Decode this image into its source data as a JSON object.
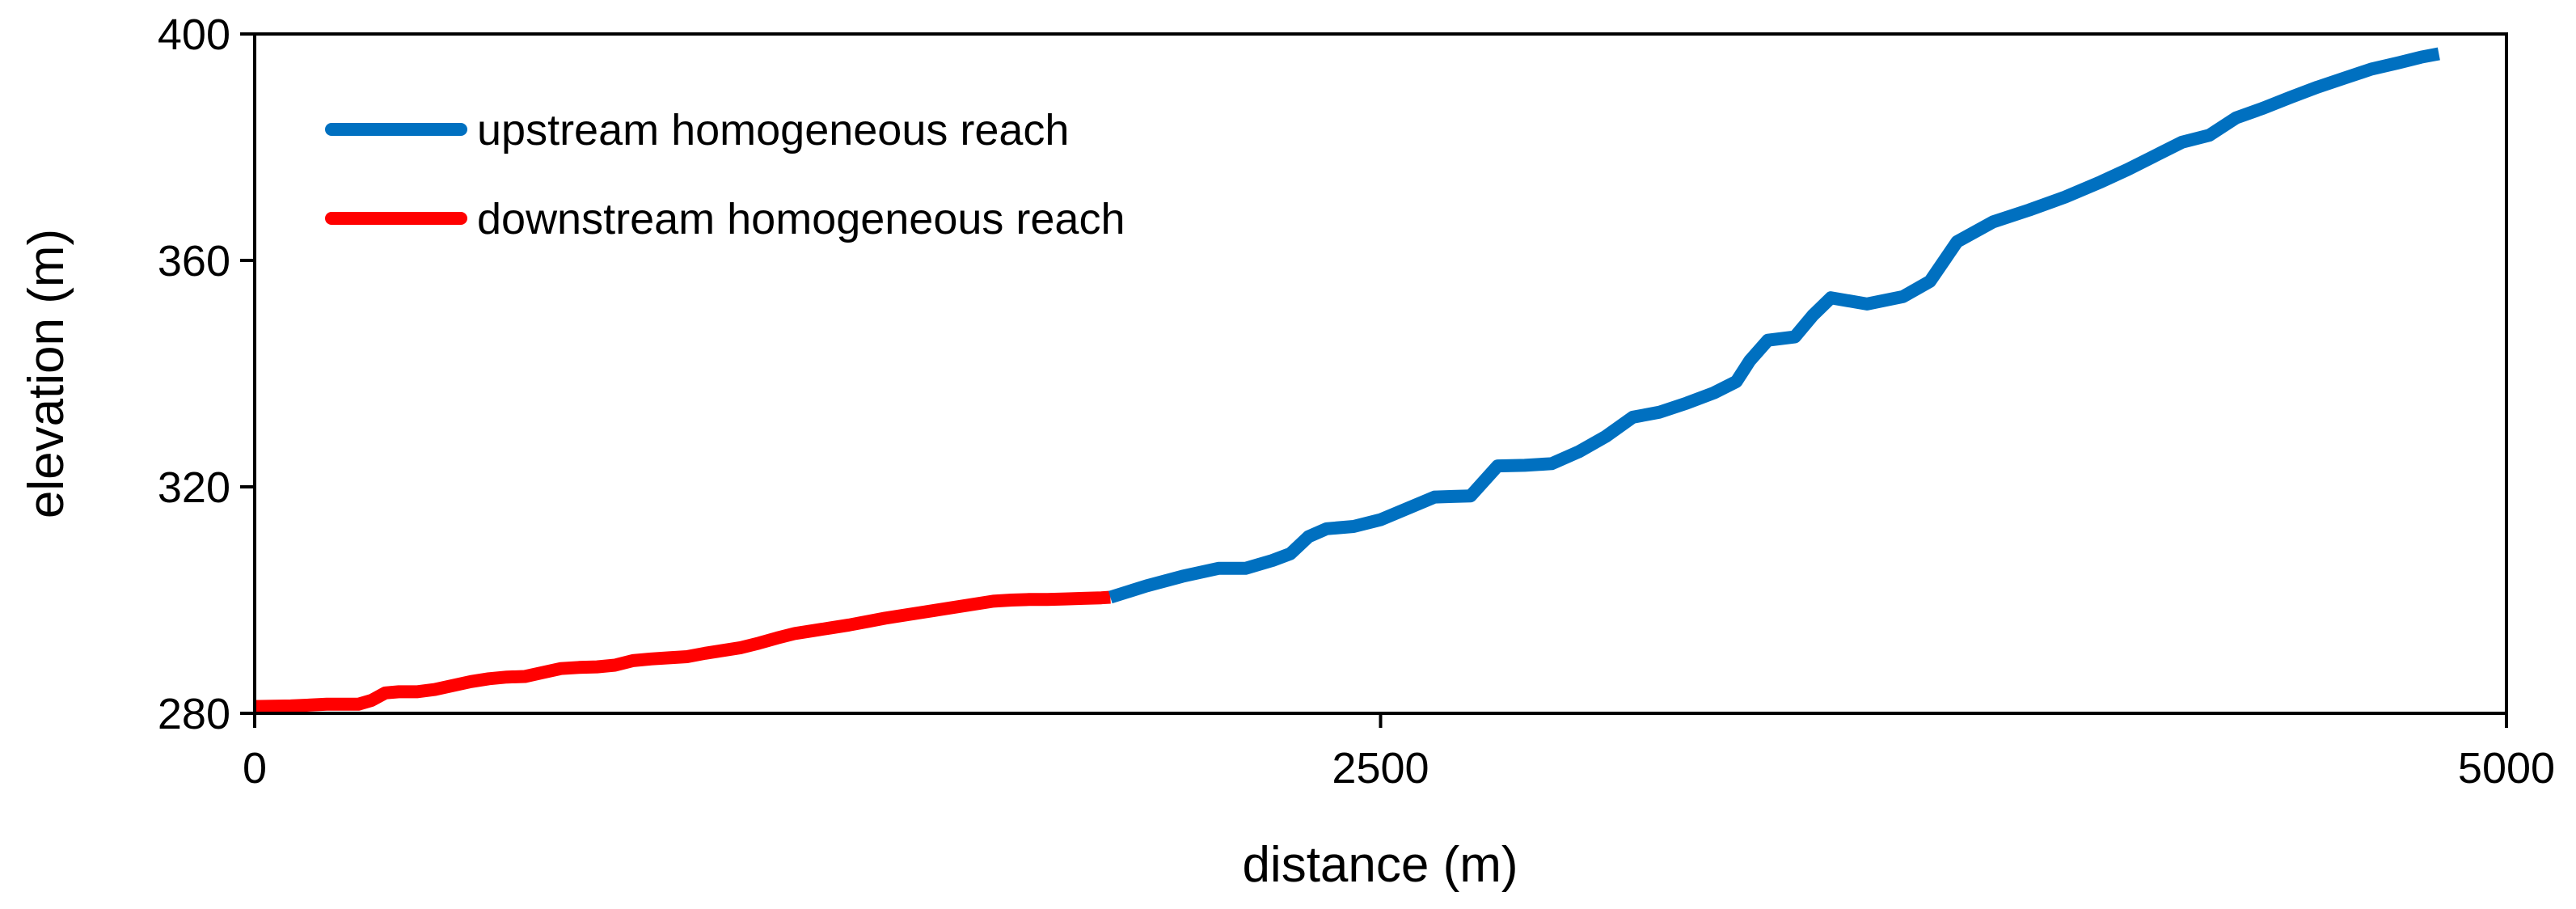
{
  "chart_data": {
    "type": "line",
    "title": "",
    "xlabel": "distance (m)",
    "ylabel": "elevation (m)",
    "xlim": [
      0,
      5000
    ],
    "ylim": [
      280,
      400
    ],
    "xticks": [
      0,
      2500,
      5000
    ],
    "yticks": [
      280,
      320,
      360,
      400
    ],
    "grid": false,
    "legend_position": "top-left",
    "series": [
      {
        "name": "upstream homogeneous reach",
        "color": "#0070C0",
        "x": [
          1900,
          1980,
          2060,
          2140,
          2200,
          2260,
          2300,
          2340,
          2380,
          2440,
          2500,
          2560,
          2620,
          2660,
          2700,
          2760,
          2820,
          2880,
          2940,
          3000,
          3060,
          3120,
          3180,
          3240,
          3290,
          3320,
          3360,
          3420,
          3460,
          3500,
          3580,
          3660,
          3720,
          3780,
          3860,
          3940,
          4020,
          4100,
          4160,
          4220,
          4280,
          4340,
          4400,
          4460,
          4520,
          4580,
          4640,
          4700,
          4760,
          4810,
          4850
        ],
        "y": [
          300.5,
          302.5,
          304.2,
          305.6,
          305.6,
          307.0,
          308.2,
          311.2,
          312.6,
          313.0,
          314.2,
          316.2,
          318.2,
          318.3,
          318.4,
          323.7,
          323.8,
          324.1,
          326.2,
          328.9,
          332.3,
          333.2,
          334.8,
          336.6,
          338.6,
          342.3,
          345.9,
          346.5,
          350.3,
          353.4,
          352.3,
          353.6,
          356.3,
          363.3,
          366.8,
          368.9,
          371.2,
          373.9,
          376.1,
          378.5,
          380.9,
          382.1,
          385.2,
          386.9,
          388.8,
          390.6,
          392.2,
          393.8,
          394.9,
          395.9,
          396.5
        ]
      },
      {
        "name": "downstream homogeneous reach",
        "color": "#FF0000",
        "x": [
          0,
          80,
          160,
          230,
          260,
          290,
          320,
          360,
          400,
          440,
          480,
          520,
          560,
          600,
          640,
          680,
          720,
          760,
          800,
          840,
          880,
          920,
          960,
          1000,
          1040,
          1080,
          1120,
          1160,
          1200,
          1240,
          1280,
          1320,
          1360,
          1400,
          1440,
          1480,
          1520,
          1560,
          1600,
          1640,
          1680,
          1720,
          1760,
          1800,
          1840,
          1880,
          1900
        ],
        "y": [
          281.2,
          281.3,
          281.6,
          281.6,
          282.3,
          283.6,
          283.8,
          283.8,
          284.2,
          284.9,
          285.6,
          286.1,
          286.4,
          286.5,
          287.2,
          287.9,
          288.1,
          288.2,
          288.5,
          289.3,
          289.6,
          289.8,
          290.0,
          290.6,
          291.1,
          291.6,
          292.4,
          293.3,
          294.1,
          294.6,
          295.1,
          295.6,
          296.2,
          296.8,
          297.3,
          297.8,
          298.3,
          298.8,
          299.3,
          299.8,
          300.0,
          300.1,
          300.1,
          300.2,
          300.3,
          300.4,
          300.5
        ]
      }
    ]
  }
}
